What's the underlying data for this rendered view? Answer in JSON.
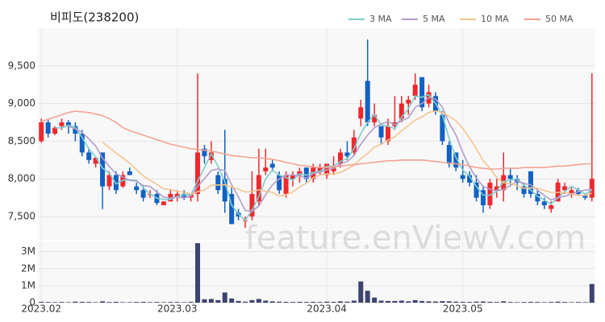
{
  "chart_data": {
    "type": "candlestick",
    "title": "비피도(238200)",
    "watermark": "feature.enViewV.com",
    "up_color": "#f0282d",
    "down_color": "#1261c4",
    "grid": true,
    "legend": "top-right",
    "categories": [
      "2023.02",
      null,
      null,
      null,
      null,
      null,
      null,
      null,
      null,
      null,
      null,
      null,
      null,
      null,
      null,
      null,
      null,
      null,
      null,
      null,
      "2023.03",
      null,
      null,
      null,
      null,
      null,
      null,
      null,
      null,
      null,
      null,
      null,
      null,
      null,
      null,
      null,
      null,
      null,
      null,
      null,
      null,
      null,
      "2023.04",
      null,
      null,
      null,
      null,
      null,
      null,
      null,
      null,
      null,
      null,
      null,
      null,
      null,
      null,
      null,
      null,
      null,
      null,
      null,
      "2023.05",
      null,
      null,
      null,
      null,
      null,
      null,
      null,
      null,
      null,
      null,
      null,
      null,
      null,
      null,
      null,
      null,
      null,
      null,
      null
    ],
    "open": [
      8500,
      8750,
      8600,
      8700,
      8750,
      8700,
      8600,
      8350,
      8200,
      8350,
      7900,
      8050,
      7900,
      8100,
      7900,
      7850,
      7800,
      7800,
      7650,
      7700,
      7750,
      7800,
      7750,
      7800,
      8400,
      8250,
      8050,
      8000,
      7800,
      7550,
      7450,
      7500,
      7700,
      8100,
      8200,
      8050,
      7800,
      8000,
      8050,
      8150,
      8000,
      8100,
      8050,
      8100,
      8200,
      8350,
      8350,
      8800,
      9300,
      8750,
      8700,
      8500,
      8700,
      8800,
      9000,
      9100,
      9350,
      9000,
      9100,
      8850,
      8450,
      8350,
      8050,
      8050,
      7950,
      7850,
      7650,
      7850,
      7850,
      8050,
      8000,
      7900,
      8100,
      7800,
      7700,
      7600,
      7700,
      7850,
      7800,
      7850,
      7780,
      7750
    ],
    "high": [
      8800,
      8800,
      8700,
      8800,
      8780,
      8750,
      8650,
      8400,
      8300,
      8350,
      8100,
      8100,
      8100,
      8150,
      7950,
      7900,
      7850,
      7850,
      7700,
      7850,
      7850,
      7850,
      7800,
      9400,
      8450,
      8500,
      8100,
      8650,
      7900,
      7600,
      7500,
      8100,
      8400,
      8400,
      8250,
      8100,
      8100,
      8100,
      8150,
      8150,
      8200,
      8200,
      8200,
      8300,
      8400,
      8500,
      8650,
      9050,
      9850,
      9000,
      8700,
      8800,
      9100,
      9100,
      9100,
      9400,
      9350,
      9250,
      9150,
      8900,
      8500,
      8350,
      8250,
      8100,
      8050,
      7900,
      8000,
      8000,
      8350,
      8150,
      8050,
      7950,
      8100,
      7850,
      7750,
      7700,
      8000,
      7950,
      7900,
      7880,
      7800,
      9400
    ],
    "low": [
      8480,
      8550,
      8580,
      8650,
      8600,
      8500,
      8300,
      8200,
      8150,
      7600,
      7850,
      7800,
      7880,
      8050,
      7800,
      7700,
      7750,
      7650,
      7650,
      7700,
      7700,
      7720,
      7700,
      7700,
      8200,
      8200,
      7800,
      7550,
      7400,
      7450,
      7350,
      7450,
      7650,
      8050,
      8100,
      7800,
      7750,
      7900,
      7950,
      7950,
      7950,
      8050,
      8000,
      8050,
      8150,
      8250,
      8300,
      8700,
      8700,
      8700,
      8450,
      8450,
      8650,
      8750,
      8850,
      9050,
      8900,
      8950,
      8850,
      8450,
      8150,
      8100,
      7950,
      7900,
      7700,
      7550,
      7600,
      7750,
      7700,
      7900,
      7850,
      7750,
      7750,
      7650,
      7600,
      7550,
      7700,
      7800,
      7750,
      7780,
      7720,
      7700
    ],
    "close": [
      8750,
      8600,
      8680,
      8750,
      8700,
      8600,
      8350,
      8250,
      8280,
      7900,
      8050,
      7850,
      8050,
      8050,
      7850,
      7750,
      7800,
      7680,
      7700,
      7800,
      7800,
      7760,
      7800,
      8350,
      8300,
      8350,
      7850,
      7700,
      7400,
      7500,
      7450,
      7800,
      8050,
      8150,
      8150,
      7850,
      8050,
      8050,
      8100,
      8000,
      8150,
      8150,
      8200,
      8150,
      8350,
      8300,
      8550,
      8950,
      8750,
      8850,
      8550,
      8700,
      8750,
      9000,
      9050,
      9250,
      8950,
      9150,
      8900,
      8500,
      8200,
      8150,
      8000,
      7950,
      7750,
      7650,
      7950,
      7900,
      8050,
      8000,
      7950,
      7800,
      7800,
      7700,
      7650,
      7650,
      7950,
      7900,
      7850,
      7800,
      7750,
      8000
    ],
    "ma": [
      {
        "name": "3 MA",
        "color": "#7ccfcf",
        "values": [
          null,
          null,
          8677,
          8677,
          8710,
          8683,
          8550,
          8400,
          8293,
          8143,
          8077,
          7933,
          7983,
          7983,
          7983,
          7883,
          7800,
          7743,
          7727,
          7727,
          7767,
          7787,
          7787,
          7970,
          8150,
          8333,
          8167,
          7967,
          7650,
          7533,
          7450,
          7583,
          7767,
          8000,
          8117,
          8050,
          8017,
          7983,
          8067,
          8050,
          8083,
          8100,
          8167,
          8167,
          8233,
          8267,
          8400,
          8600,
          8750,
          8850,
          8717,
          8700,
          8667,
          8817,
          8933,
          9100,
          9083,
          9117,
          9000,
          8850,
          8533,
          8283,
          8117,
          8033,
          7900,
          7783,
          7783,
          7833,
          7967,
          7983,
          8000,
          7917,
          7850,
          7767,
          7717,
          7667,
          7750,
          7833,
          7900,
          7850,
          7800,
          7850
        ]
      },
      {
        "name": "5 MA",
        "color": "#b29dc9",
        "values": [
          null,
          null,
          null,
          null,
          8696,
          8666,
          8616,
          8530,
          8436,
          8276,
          8166,
          8066,
          8026,
          7980,
          7970,
          7910,
          7900,
          7826,
          7756,
          7746,
          7756,
          7748,
          7772,
          7902,
          8002,
          8112,
          8130,
          8110,
          7920,
          7760,
          7580,
          7570,
          7640,
          7790,
          7920,
          8000,
          8050,
          8050,
          8040,
          8010,
          8070,
          8090,
          8120,
          8140,
          8200,
          8230,
          8310,
          8460,
          8580,
          8680,
          8730,
          8760,
          8720,
          8770,
          8810,
          8950,
          9000,
          9080,
          9060,
          8950,
          8740,
          8580,
          8350,
          8160,
          8010,
          7900,
          7860,
          7840,
          7860,
          7910,
          7970,
          7940,
          7920,
          7850,
          7780,
          7720,
          7750,
          7770,
          7800,
          7830,
          7850,
          7860
        ]
      },
      {
        "name": "10 MA",
        "color": "#f4c48f",
        "values": [
          null,
          null,
          null,
          null,
          null,
          null,
          null,
          null,
          null,
          8486,
          8416,
          8341,
          8278,
          8208,
          8123,
          8038,
          7983,
          7926,
          7868,
          7858,
          7833,
          7824,
          7799,
          7829,
          7854,
          7914,
          7919,
          7921,
          7891,
          7861,
          7826,
          7830,
          7855,
          7835,
          7820,
          7770,
          7790,
          7825,
          7895,
          7945,
          8015,
          8050,
          8065,
          8065,
          8085,
          8130,
          8180,
          8270,
          8335,
          8420,
          8460,
          8515,
          8555,
          8640,
          8710,
          8780,
          8820,
          8880,
          8900,
          8880,
          8830,
          8770,
          8670,
          8540,
          8400,
          8240,
          8140,
          8015,
          7950,
          7935,
          7910,
          7875,
          7880,
          7875,
          7845,
          7820,
          7820,
          7820,
          7800,
          7780,
          7780,
          7810
        ]
      },
      {
        "name": "50 MA",
        "color": "#f4a393",
        "values": [
          8760,
          8790,
          8820,
          8850,
          8880,
          8900,
          8890,
          8880,
          8860,
          8840,
          8800,
          8750,
          8680,
          8640,
          8610,
          8580,
          8550,
          8520,
          8490,
          8460,
          8440,
          8420,
          8400,
          8390,
          8380,
          8370,
          8350,
          8330,
          8310,
          8300,
          8290,
          8280,
          8280,
          8270,
          8260,
          8240,
          8220,
          8200,
          8180,
          8170,
          8160,
          8150,
          8150,
          8160,
          8170,
          8180,
          8190,
          8200,
          8210,
          8220,
          8230,
          8240,
          8240,
          8250,
          8250,
          8250,
          8250,
          8240,
          8230,
          8220,
          8210,
          8200,
          8190,
          8170,
          8150,
          8140,
          8130,
          8130,
          8140,
          8140,
          8140,
          8150,
          8150,
          8150,
          8150,
          8160,
          8170,
          8170,
          8180,
          8190,
          8200,
          8200
        ]
      }
    ],
    "ylim": [
      7190,
      10000
    ],
    "yticks": [
      {
        "value": 7500,
        "label": "7,500"
      },
      {
        "value": 8000,
        "label": "8,000"
      },
      {
        "value": 8500,
        "label": "8,500"
      },
      {
        "value": 9000,
        "label": "9,000"
      },
      {
        "value": 9500,
        "label": "9,500"
      }
    ],
    "volume": {
      "color": "#3e4470",
      "values": [
        50000,
        40000,
        30000,
        40000,
        30000,
        60000,
        50000,
        40000,
        30000,
        80000,
        40000,
        50000,
        30000,
        30000,
        40000,
        50000,
        30000,
        40000,
        30000,
        40000,
        40000,
        30000,
        50000,
        3500000,
        200000,
        220000,
        150000,
        600000,
        250000,
        100000,
        60000,
        150000,
        220000,
        120000,
        80000,
        60000,
        50000,
        40000,
        50000,
        40000,
        50000,
        40000,
        60000,
        50000,
        80000,
        60000,
        120000,
        1250000,
        700000,
        300000,
        120000,
        100000,
        100000,
        120000,
        80000,
        150000,
        100000,
        80000,
        70000,
        90000,
        80000,
        60000,
        50000,
        40000,
        60000,
        70000,
        50000,
        40000,
        80000,
        40000,
        30000,
        40000,
        50000,
        40000,
        30000,
        40000,
        60000,
        40000,
        30000,
        40000,
        30000,
        1100000
      ],
      "ylim": [
        0,
        3600000
      ],
      "yticks": [
        0,
        {
          "value": 1000000,
          "label": "1M"
        },
        {
          "value": 2000000,
          "label": "2M"
        },
        {
          "value": 3000000,
          "label": "3M"
        }
      ]
    }
  }
}
